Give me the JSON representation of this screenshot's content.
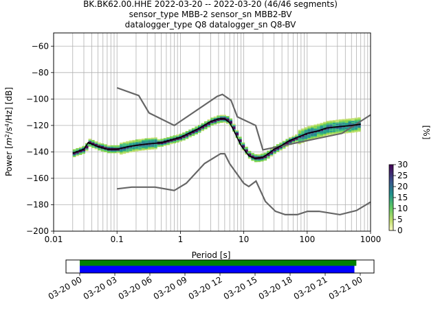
{
  "title_lines": [
    "BK.BK62.00.HHE   2022-03-20 -- 2022-03-20  (46/46 segments)",
    "sensor_type MBB-2 sensor_sn MBB2-BV",
    "datalogger_type Q8 datalogger_sn Q8-BV"
  ],
  "chart_data": [
    {
      "type": "heatmap",
      "xlabel": "Period [s]",
      "ylabel": "Power [m²/s⁴/Hz] [dB]",
      "ylabel_parts": {
        "pre": "Power [",
        "m": "m",
        "sup1": "2",
        "mid": "/s",
        "sup2": "4",
        "post": "/Hz] [dB]"
      },
      "xscale": "log",
      "xlim": [
        0.01,
        1000
      ],
      "ylim": [
        -200,
        -50
      ],
      "xticks": [
        {
          "v": 0.01,
          "label": "0.01"
        },
        {
          "v": 0.1,
          "label": "0.1"
        },
        {
          "v": 1,
          "label": "1"
        },
        {
          "v": 10,
          "label": "10"
        },
        {
          "v": 100,
          "label": "100"
        },
        {
          "v": 1000,
          "label": "1000"
        }
      ],
      "yticks": [
        {
          "v": -60,
          "label": "−60"
        },
        {
          "v": -80,
          "label": "−80"
        },
        {
          "v": -100,
          "label": "−100"
        },
        {
          "v": -120,
          "label": "−120"
        },
        {
          "v": -140,
          "label": "−140"
        },
        {
          "v": -160,
          "label": "−160"
        },
        {
          "v": -180,
          "label": "−180"
        },
        {
          "v": -200,
          "label": "−200"
        }
      ],
      "grid": true,
      "mode_curve": [
        [
          0.02,
          -141
        ],
        [
          0.03,
          -138
        ],
        [
          0.035,
          -133
        ],
        [
          0.05,
          -136
        ],
        [
          0.07,
          -138
        ],
        [
          0.1,
          -138
        ],
        [
          0.15,
          -136
        ],
        [
          0.2,
          -135
        ],
        [
          0.3,
          -134
        ],
        [
          0.5,
          -133
        ],
        [
          0.7,
          -131
        ],
        [
          1,
          -129
        ],
        [
          1.5,
          -125
        ],
        [
          2,
          -122
        ],
        [
          3,
          -117
        ],
        [
          4,
          -115
        ],
        [
          5,
          -115
        ],
        [
          6,
          -118
        ],
        [
          7,
          -124
        ],
        [
          8,
          -130
        ],
        [
          9,
          -135
        ],
        [
          10,
          -138
        ],
        [
          12,
          -143
        ],
        [
          15,
          -145
        ],
        [
          20,
          -144
        ],
        [
          25,
          -141
        ],
        [
          30,
          -138
        ],
        [
          40,
          -135
        ],
        [
          50,
          -132
        ],
        [
          70,
          -129
        ],
        [
          100,
          -126
        ],
        [
          150,
          -124
        ],
        [
          200,
          -122
        ],
        [
          300,
          -121
        ],
        [
          500,
          -120
        ],
        [
          700,
          -119
        ]
      ],
      "noise_models": [
        {
          "name": "high",
          "points": [
            [
              0.1,
              -91.5
            ],
            [
              0.22,
              -97.4
            ],
            [
              0.32,
              -110.5
            ],
            [
              0.8,
              -120
            ],
            [
              3.8,
              -98
            ],
            [
              4.6,
              -96.5
            ],
            [
              6.3,
              -101
            ],
            [
              7.9,
              -113.5
            ],
            [
              15.4,
              -120
            ],
            [
              20,
              -138.5
            ],
            [
              354.8,
              -126
            ],
            [
              1000,
              -112
            ]
          ]
        },
        {
          "name": "low",
          "points": [
            [
              0.1,
              -168
            ],
            [
              0.17,
              -166.7
            ],
            [
              0.4,
              -166.7
            ],
            [
              0.8,
              -169.2
            ],
            [
              1.24,
              -163.7
            ],
            [
              2.4,
              -148.8
            ],
            [
              4.3,
              -141.4
            ],
            [
              5,
              -141.4
            ],
            [
              6,
              -149
            ],
            [
              10,
              -163.8
            ],
            [
              12,
              -166.2
            ],
            [
              15.6,
              -162.1
            ],
            [
              21.9,
              -177.5
            ],
            [
              31.6,
              -185
            ],
            [
              45,
              -187.5
            ],
            [
              70,
              -187.5
            ],
            [
              101,
              -185
            ],
            [
              154,
              -185
            ],
            [
              328,
              -187.5
            ],
            [
              600,
              -184.4
            ],
            [
              1000,
              -178
            ]
          ]
        }
      ],
      "colorbar": {
        "label": "[%]",
        "min": 0,
        "max": 30,
        "ticks": [
          0,
          5,
          10,
          15,
          20,
          25,
          30
        ],
        "colormap": "viridis_r"
      },
      "colors": {
        "high_density": "#3b0a63",
        "mode": "#000000",
        "model": "#666666",
        "grid": "#b0b0b0"
      }
    },
    {
      "type": "bar",
      "xlabel": "",
      "ylabel": "",
      "xlim": [
        "03-20 00",
        "03-21 00"
      ],
      "xticks": [
        "03-20 00",
        "03-20 03",
        "03-20 06",
        "03-20 09",
        "03-20 12",
        "03-20 15",
        "03-20 18",
        "03-20 21",
        "03-21 00"
      ],
      "series": [
        {
          "values": [
            [
              "03-20 00",
              "03-20 23:40"
            ]
          ],
          "color": "#008000"
        },
        {
          "values": [
            [
              "03-20 00",
              "03-20 23:30"
            ]
          ],
          "color": "#0000ff"
        }
      ]
    }
  ]
}
